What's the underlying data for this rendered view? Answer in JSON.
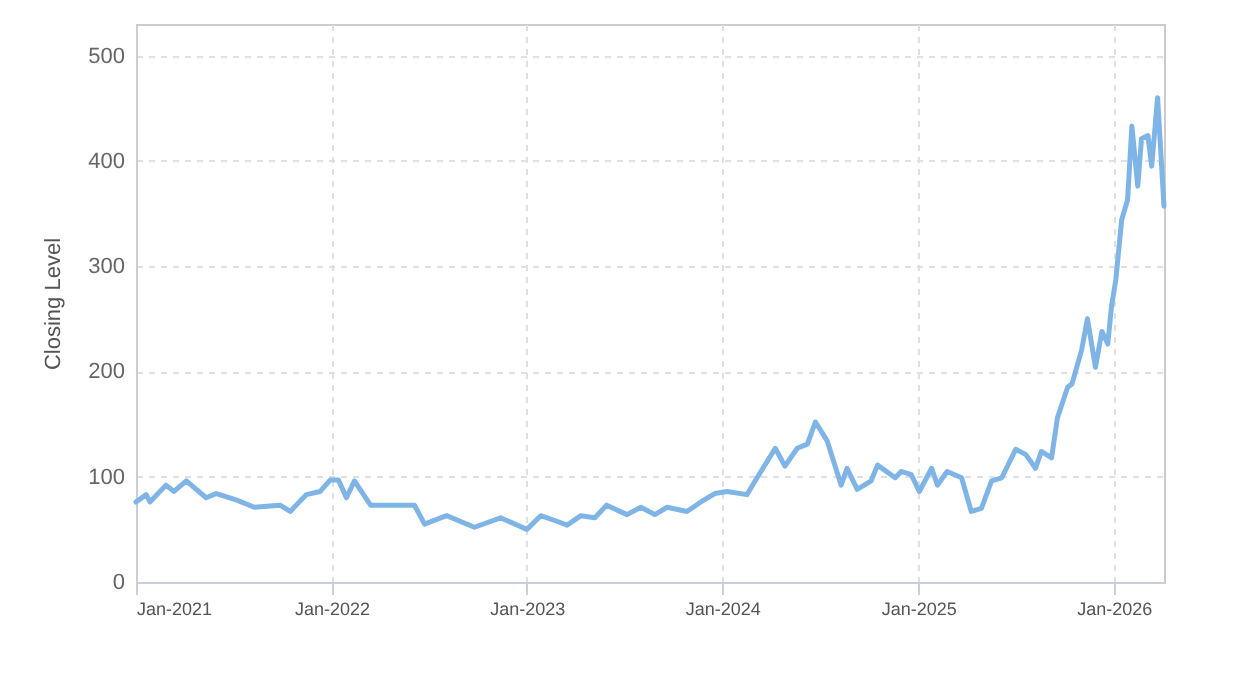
{
  "chart_data": {
    "type": "line",
    "ylabel": "Closing Level",
    "x": [
      "2021-01-01",
      "2021-01-20",
      "2021-01-27",
      "2021-02-26",
      "2021-03-13",
      "2021-04-05",
      "2021-05-12",
      "2021-05-31",
      "2021-07-07",
      "2021-08-10",
      "2021-09-27",
      "2021-10-16",
      "2021-11-15",
      "2021-12-11",
      "2021-12-30",
      "2022-01-14",
      "2022-01-29",
      "2022-02-13",
      "2022-03-15",
      "2022-04-10",
      "2022-06-05",
      "2022-06-24",
      "2022-08-04",
      "2022-09-25",
      "2022-11-13",
      "2023-01-01",
      "2023-01-27",
      "2023-03-02",
      "2023-03-17",
      "2023-04-12",
      "2023-05-08",
      "2023-05-30",
      "2023-07-07",
      "2023-08-02",
      "2023-08-28",
      "2023-09-20",
      "2023-10-27",
      "2023-11-22",
      "2023-12-18",
      "2024-01-10",
      "2024-02-16",
      "2024-03-06",
      "2024-04-09",
      "2024-04-27",
      "2024-05-20",
      "2024-06-08",
      "2024-06-23",
      "2024-07-15",
      "2024-08-10",
      "2024-08-21",
      "2024-09-09",
      "2024-10-05",
      "2024-10-17",
      "2024-11-19",
      "2024-11-30",
      "2024-12-19",
      "2025-01-03",
      "2025-01-26",
      "2025-02-06",
      "2025-02-24",
      "2025-03-23",
      "2025-04-10",
      "2025-04-29",
      "2025-05-18",
      "2025-06-06",
      "2025-07-02",
      "2025-07-21",
      "2025-08-08",
      "2025-08-19",
      "2025-09-07",
      "2025-09-18",
      "2025-10-07",
      "2025-10-15",
      "2025-11-02",
      "2025-11-13",
      "2025-11-28",
      "2025-12-10",
      "2025-12-21",
      "2025-12-28",
      "2026-01-05",
      "2026-01-16",
      "2026-01-27",
      "2026-02-04",
      "2026-02-15",
      "2026-02-22",
      "2026-03-06",
      "2026-03-13",
      "2026-03-24",
      "2026-04-05"
    ],
    "series": [
      {
        "color": "#7fb4e6",
        "values": [
          76,
          83,
          76,
          92,
          86,
          96,
          80,
          84,
          78,
          71,
          73,
          67,
          83,
          86,
          97,
          97,
          80,
          96,
          73,
          73,
          73,
          55,
          63,
          52,
          61,
          50,
          63,
          57,
          54,
          63,
          61,
          73,
          64,
          71,
          64,
          71,
          67,
          76,
          84,
          86,
          83,
          99,
          127,
          110,
          127,
          131,
          152,
          134,
          92,
          108,
          88,
          96,
          111,
          99,
          105,
          102,
          86,
          108,
          92,
          105,
          99,
          67,
          70,
          96,
          99,
          126,
          121,
          108,
          124,
          118,
          156,
          185,
          188,
          220,
          250,
          204,
          238,
          226,
          262,
          287,
          344,
          363,
          433,
          376,
          421,
          424,
          395,
          460,
          357
        ]
      }
    ],
    "xlim": [
      "2021-01-01",
      "2026-04-05"
    ],
    "xticks": [
      {
        "value": "2021-01-01",
        "label": "Jan-2021"
      },
      {
        "value": "2022-01-01",
        "label": "Jan-2022"
      },
      {
        "value": "2023-01-01",
        "label": "Jan-2023"
      },
      {
        "value": "2024-01-01",
        "label": "Jan-2024"
      },
      {
        "value": "2025-01-01",
        "label": "Jan-2025"
      },
      {
        "value": "2026-01-01",
        "label": "Jan-2026"
      }
    ],
    "ylim": [
      0,
      530
    ],
    "yticks": [
      0,
      100,
      200,
      300,
      400,
      500
    ],
    "grid": true
  }
}
